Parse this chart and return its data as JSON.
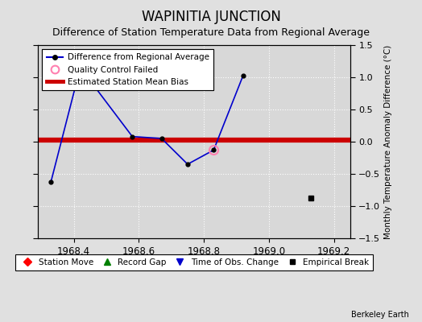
{
  "title": "WAPINITIA JUNCTION",
  "subtitle": "Difference of Station Temperature Data from Regional Average",
  "ylabel": "Monthly Temperature Anomaly Difference (°C)",
  "xlim": [
    1968.29,
    1969.25
  ],
  "ylim": [
    -1.5,
    1.5
  ],
  "xticks": [
    1968.4,
    1968.6,
    1968.8,
    1969.0,
    1969.2
  ],
  "yticks": [
    -1.5,
    -1.0,
    -0.5,
    0.0,
    0.5,
    1.0,
    1.5
  ],
  "background_color": "#e0e0e0",
  "plot_bg_color": "#d8d8d8",
  "line_x": [
    1968.33,
    1968.42,
    1968.58,
    1968.67,
    1968.75,
    1968.83,
    1968.92
  ],
  "line_y": [
    -0.62,
    1.15,
    0.08,
    0.05,
    -0.35,
    -0.13,
    1.02
  ],
  "bias_y": 0.02,
  "bias_color": "#cc0000",
  "line_color": "#0000cc",
  "empirical_break_x": [
    1969.13
  ],
  "empirical_break_y": [
    -0.87
  ],
  "qc_failed_x": [
    1968.83
  ],
  "qc_failed_y": [
    -0.13
  ],
  "watermark": "Berkeley Earth",
  "grid_color": "#ffffff",
  "title_fontsize": 12,
  "subtitle_fontsize": 9
}
